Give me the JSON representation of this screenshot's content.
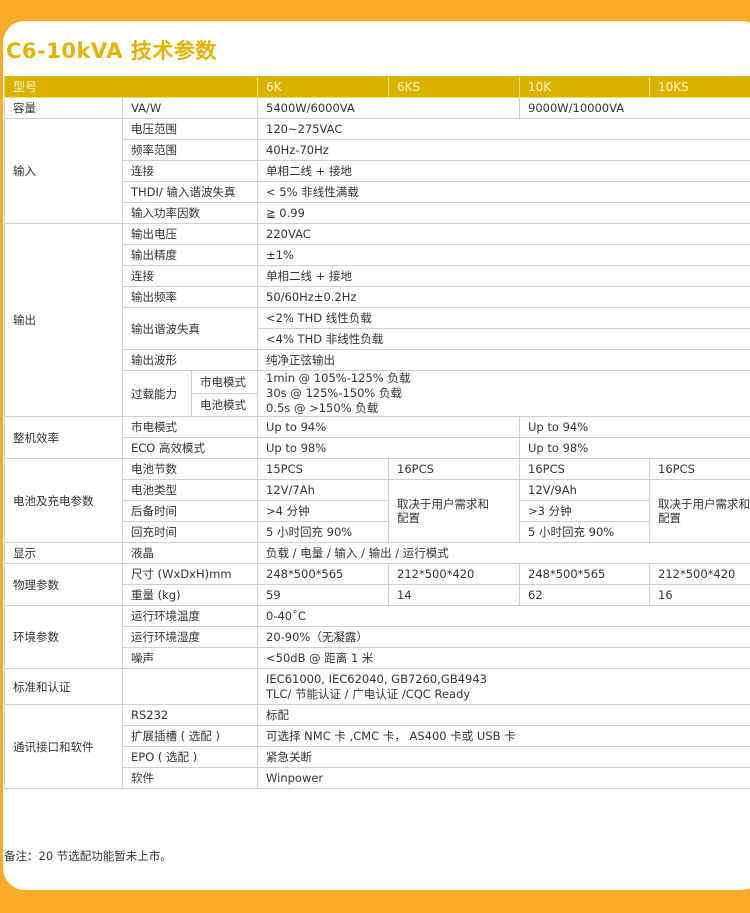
{
  "title": "C6-10kVA 技术参数",
  "header": {
    "model_label": "型号",
    "models": [
      "6K",
      "6KS",
      "10K",
      "10KS"
    ]
  },
  "capacity": {
    "label": "容量",
    "param": "VA/W",
    "v6k": "5400W/6000VA",
    "v10k": "9000W/10000VA"
  },
  "input": {
    "label": "输入",
    "rows": [
      {
        "param": "电压范围",
        "value": "120~275VAC"
      },
      {
        "param": "频率范围",
        "value": "40Hz-70Hz"
      },
      {
        "param": "连接",
        "value": "单相二线 + 接地"
      },
      {
        "param": "THDI/ 输入谐波失真",
        "value": "< 5% 非线性满载"
      },
      {
        "param": "输入功率因数",
        "value": "≧ 0.99"
      }
    ]
  },
  "output": {
    "label": "输出",
    "rows": [
      {
        "param": "输出电压",
        "value": "220VAC"
      },
      {
        "param": "输出精度",
        "value": "±1%"
      },
      {
        "param": "连接",
        "value": "单相二线 + 接地"
      },
      {
        "param": "输出频率",
        "value": "50/60Hz±0.2Hz"
      }
    ],
    "thd": {
      "param": "输出谐波失真",
      "linear": "<2% THD 线性负载",
      "nonlinear": "<4% THD 非线性负载"
    },
    "waveform": {
      "param": "输出波形",
      "value": "纯净正弦输出"
    },
    "overload": {
      "param": "过载能力",
      "mode_utility": "市电模式",
      "mode_battery": "电池模式",
      "lines": [
        "1min @ 105%-125% 负载",
        "30s @ 125%-150% 负载",
        "0.5s @ >150% 负载"
      ]
    }
  },
  "efficiency": {
    "label": "整机效率",
    "rows": [
      {
        "param": "市电模式",
        "v6k": "Up to 94%",
        "v10k": "Up to 94%"
      },
      {
        "param": "ECO 高效模式",
        "v6k": "Up to 98%",
        "v10k": "Up to 98%"
      }
    ]
  },
  "battery": {
    "label": "电池及充电参数",
    "count": {
      "param": "电池节数",
      "values": [
        "15PCS",
        "16PCS",
        "16PCS",
        "16PCS"
      ]
    },
    "type": {
      "param": "电池类型",
      "v6k": "12V/7Ah",
      "v10k": "12V/9Ah"
    },
    "backup": {
      "param": "后备时间",
      "v6k": ">4 分钟",
      "v10k": ">3 分钟"
    },
    "recharge": {
      "param": "回充时间",
      "v6k": "5 小时回充 90%",
      "v10k": "5 小时回充 90%"
    },
    "depends": "取决于用户需求和配置"
  },
  "display": {
    "label": "显示",
    "param": "液晶",
    "value": "负载 / 电量 / 输入 / 输出 / 运行模式"
  },
  "physical": {
    "label": "物理参数",
    "size": {
      "param": "尺寸 (WxDxH)mm",
      "values": [
        "248*500*565",
        "212*500*420",
        "248*500*565",
        "212*500*420"
      ]
    },
    "weight": {
      "param": "重量 (kg)",
      "values": [
        "59",
        "14",
        "62",
        "16"
      ]
    }
  },
  "environment": {
    "label": "环境参数",
    "rows": [
      {
        "param": "运行环境温度",
        "value": "0-40˚C"
      },
      {
        "param": "运行环境湿度",
        "value": "20-90%（无凝露）"
      },
      {
        "param": "噪声",
        "value": "<50dB @ 距离 1 米"
      }
    ]
  },
  "standards": {
    "label": "标准和认证",
    "lines": [
      "IEC61000, IEC62040, GB7260,GB4943",
      "TLC/ 节能认证 / 广电认证 /CQC Ready"
    ]
  },
  "comm": {
    "label": "通讯接口和软件",
    "rows": [
      {
        "param": "RS232",
        "value": "标配"
      },
      {
        "param": "扩展插槽 ( 选配 )",
        "value": "可选择 NMC 卡 ,CMC 卡， AS400 卡或 USB 卡"
      },
      {
        "param": "EPO ( 选配 )",
        "value": "紧急关断"
      },
      {
        "param": "软件",
        "value": "Winpower"
      }
    ]
  },
  "note": "备注：20 节选配功能暂未上市。"
}
